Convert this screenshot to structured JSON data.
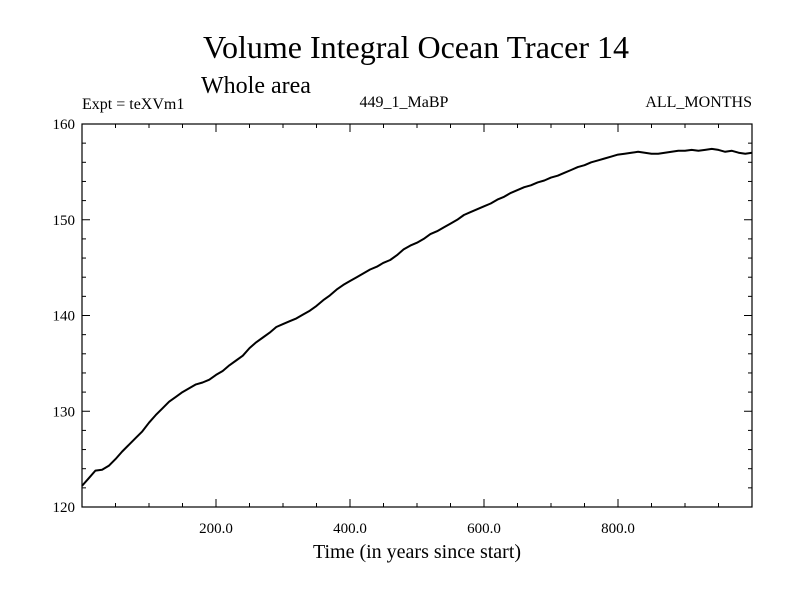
{
  "chart_data": {
    "type": "line",
    "title": "Volume Integral Ocean Tracer 14",
    "subtitle": "Whole area",
    "info_left": "Expt = teXVm1",
    "info_center": "449_1_MaBP",
    "info_right": "ALL_MONTHS",
    "xlabel": "Time (in years since start)",
    "ylabel": "",
    "xlim": [
      0,
      1000
    ],
    "ylim": [
      120,
      160
    ],
    "x_ticks": [
      200,
      400,
      600,
      800
    ],
    "x_tick_labels": [
      "200.0",
      "400.0",
      "600.0",
      "800.0"
    ],
    "y_ticks": [
      120,
      130,
      140,
      150,
      160
    ],
    "y_tick_labels": [
      "120",
      "130",
      "140",
      "150",
      "160"
    ],
    "grid": false,
    "series": [
      {
        "name": "Volume Integral Ocean Tracer 14",
        "color": "#000000",
        "x": [
          0,
          10,
          20,
          30,
          40,
          50,
          60,
          70,
          80,
          90,
          100,
          110,
          120,
          130,
          140,
          150,
          160,
          170,
          180,
          190,
          200,
          210,
          220,
          230,
          240,
          250,
          260,
          270,
          280,
          290,
          300,
          310,
          320,
          330,
          340,
          350,
          360,
          370,
          380,
          390,
          400,
          410,
          420,
          430,
          440,
          450,
          460,
          470,
          480,
          490,
          500,
          510,
          520,
          530,
          540,
          550,
          560,
          570,
          580,
          590,
          600,
          610,
          620,
          630,
          640,
          650,
          660,
          670,
          680,
          690,
          700,
          710,
          720,
          730,
          740,
          750,
          760,
          770,
          780,
          790,
          800,
          810,
          820,
          830,
          840,
          850,
          860,
          870,
          880,
          890,
          900,
          910,
          920,
          930,
          940,
          950,
          960,
          970,
          980,
          990,
          1000
        ],
        "values": [
          122.2,
          123.0,
          123.8,
          123.9,
          124.3,
          125.0,
          125.8,
          126.5,
          127.2,
          127.9,
          128.8,
          129.6,
          130.3,
          131.0,
          131.5,
          132.0,
          132.4,
          132.8,
          133.0,
          133.3,
          133.8,
          134.2,
          134.8,
          135.3,
          135.8,
          136.6,
          137.2,
          137.7,
          138.2,
          138.8,
          139.1,
          139.4,
          139.7,
          140.1,
          140.5,
          141.0,
          141.6,
          142.1,
          142.7,
          143.2,
          143.6,
          144.0,
          144.4,
          144.8,
          145.1,
          145.5,
          145.8,
          146.3,
          146.9,
          147.3,
          147.6,
          148.0,
          148.5,
          148.8,
          149.2,
          149.6,
          150.0,
          150.5,
          150.8,
          151.1,
          151.4,
          151.7,
          152.1,
          152.4,
          152.8,
          153.1,
          153.4,
          153.6,
          153.9,
          154.1,
          154.4,
          154.6,
          154.9,
          155.2,
          155.5,
          155.7,
          156.0,
          156.2,
          156.4,
          156.6,
          156.8,
          156.9,
          157.0,
          157.1,
          157.0,
          156.9,
          156.9,
          157.0,
          157.1,
          157.2,
          157.2,
          157.3,
          157.2,
          157.3,
          157.4,
          157.3,
          157.1,
          157.2,
          157.0,
          156.9,
          157.0
        ]
      }
    ]
  }
}
